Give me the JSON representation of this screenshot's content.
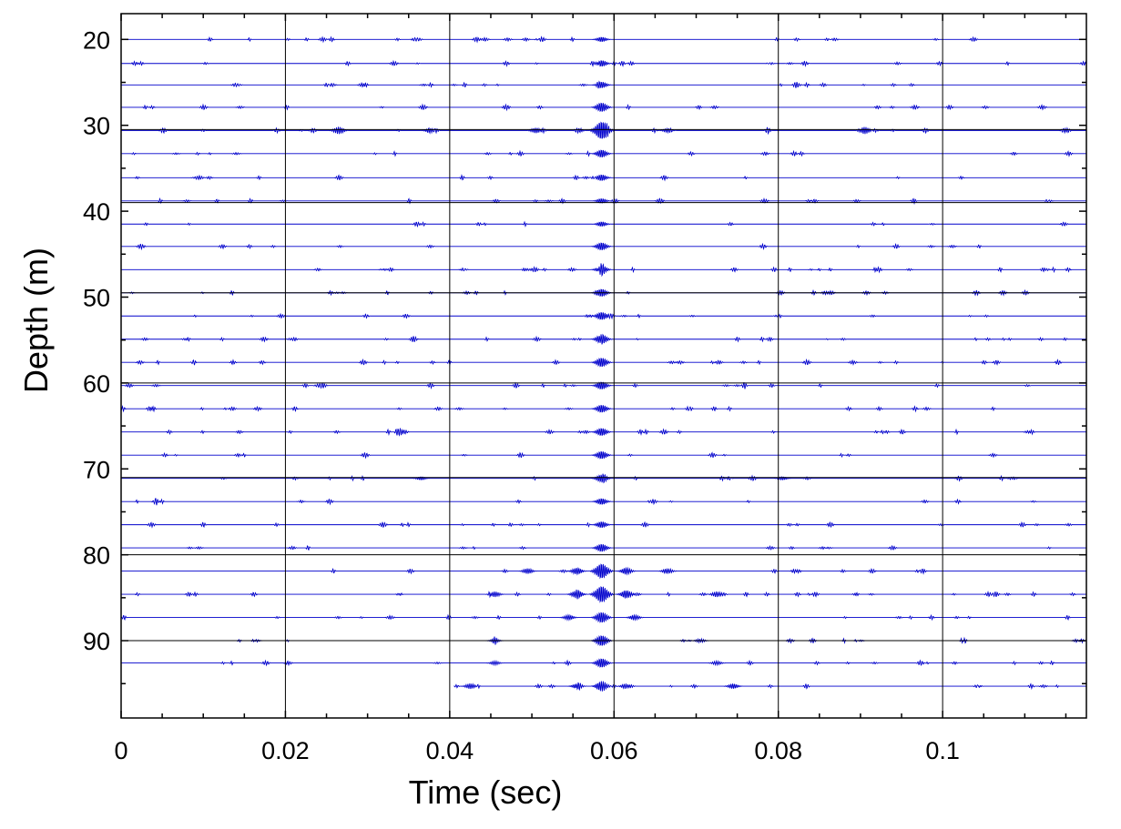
{
  "chart_data": {
    "type": "line",
    "title": "",
    "xlabel": "Time (sec)",
    "ylabel": "Depth (m)",
    "xlim": [
      0,
      0.1175
    ],
    "ylim": [
      99,
      17
    ],
    "y_reversed": true,
    "grid": false,
    "legend": "none",
    "trace_color": "#0000cc",
    "x_ticks": [
      0,
      0.02,
      0.04,
      0.06,
      0.08,
      0.1
    ],
    "x_tick_labels": [
      "0",
      "0.02",
      "0.04",
      "0.06",
      "0.08",
      "0.1"
    ],
    "y_ticks": [
      20,
      30,
      40,
      50,
      60,
      70,
      80,
      90
    ],
    "y_tick_labels": [
      "20",
      "30",
      "40",
      "50",
      "60",
      "70",
      "80",
      "90"
    ],
    "vertical_lines_x": [
      0.02,
      0.04,
      0.06,
      0.08,
      0.1
    ],
    "horizontal_lines_depth": [
      30.5,
      39,
      49.5,
      60,
      71,
      80,
      90
    ],
    "traces": [
      {
        "depth": 20.0,
        "x_start": 0.0,
        "x_end": 0.1175,
        "bursts": [
          [
            0.0585,
            3
          ]
        ]
      },
      {
        "depth": 22.8,
        "x_start": 0.0,
        "x_end": 0.1175,
        "bursts": [
          [
            0.0585,
            4
          ]
        ]
      },
      {
        "depth": 25.3,
        "x_start": 0.0,
        "x_end": 0.1175,
        "bursts": [
          [
            0.0585,
            4
          ]
        ]
      },
      {
        "depth": 27.9,
        "x_start": 0.0,
        "x_end": 0.1175,
        "bursts": [
          [
            0.0585,
            6
          ]
        ]
      },
      {
        "depth": 30.6,
        "x_start": 0.0,
        "x_end": 0.1175,
        "bursts": [
          [
            0.0585,
            12
          ],
          [
            0.0265,
            4
          ],
          [
            0.0505,
            3
          ],
          [
            0.0905,
            4
          ],
          [
            0.0665,
            2
          ],
          [
            0.0375,
            2
          ]
        ]
      },
      {
        "depth": 33.3,
        "x_start": 0.0,
        "x_end": 0.1175,
        "bursts": [
          [
            0.0585,
            5
          ]
        ]
      },
      {
        "depth": 36.1,
        "x_start": 0.0,
        "x_end": 0.1175,
        "bursts": [
          [
            0.0585,
            4
          ]
        ]
      },
      {
        "depth": 38.8,
        "x_start": 0.0,
        "x_end": 0.1175,
        "bursts": [
          [
            0.0585,
            3
          ]
        ]
      },
      {
        "depth": 41.5,
        "x_start": 0.0,
        "x_end": 0.1175,
        "bursts": [
          [
            0.0585,
            3
          ]
        ]
      },
      {
        "depth": 44.1,
        "x_start": 0.0,
        "x_end": 0.1175,
        "bursts": [
          [
            0.0585,
            5
          ]
        ]
      },
      {
        "depth": 46.8,
        "x_start": 0.0,
        "x_end": 0.1175,
        "bursts": [
          [
            0.0585,
            5
          ]
        ]
      },
      {
        "depth": 49.5,
        "x_start": 0.0,
        "x_end": 0.1175,
        "bursts": [
          [
            0.0585,
            5
          ]
        ]
      },
      {
        "depth": 52.2,
        "x_start": 0.0,
        "x_end": 0.1175,
        "bursts": [
          [
            0.0585,
            5
          ]
        ]
      },
      {
        "depth": 54.9,
        "x_start": 0.0,
        "x_end": 0.1175,
        "bursts": [
          [
            0.0585,
            6
          ]
        ]
      },
      {
        "depth": 57.6,
        "x_start": 0.0,
        "x_end": 0.1175,
        "bursts": [
          [
            0.0585,
            6
          ]
        ]
      },
      {
        "depth": 60.3,
        "x_start": 0.0,
        "x_end": 0.1175,
        "bursts": [
          [
            0.0585,
            5
          ]
        ]
      },
      {
        "depth": 63.0,
        "x_start": 0.0,
        "x_end": 0.1175,
        "bursts": [
          [
            0.0585,
            5
          ]
        ]
      },
      {
        "depth": 65.7,
        "x_start": 0.0,
        "x_end": 0.1175,
        "bursts": [
          [
            0.0585,
            5
          ]
        ]
      },
      {
        "depth": 68.4,
        "x_start": 0.0,
        "x_end": 0.1175,
        "bursts": [
          [
            0.0585,
            5
          ]
        ]
      },
      {
        "depth": 71.1,
        "x_start": 0.0,
        "x_end": 0.1175,
        "bursts": [
          [
            0.0585,
            5
          ],
          [
            0.0365,
            2
          ],
          [
            0.0805,
            2
          ]
        ]
      },
      {
        "depth": 73.8,
        "x_start": 0.0,
        "x_end": 0.1175,
        "bursts": [
          [
            0.0585,
            4
          ]
        ]
      },
      {
        "depth": 76.5,
        "x_start": 0.0,
        "x_end": 0.1175,
        "bursts": [
          [
            0.0585,
            4
          ]
        ]
      },
      {
        "depth": 79.2,
        "x_start": 0.0,
        "x_end": 0.1175,
        "bursts": [
          [
            0.0585,
            5
          ]
        ]
      },
      {
        "depth": 81.9,
        "x_start": 0.0,
        "x_end": 0.1175,
        "bursts": [
          [
            0.0585,
            10
          ],
          [
            0.0555,
            4
          ],
          [
            0.0615,
            4
          ],
          [
            0.0495,
            3
          ],
          [
            0.0665,
            3
          ]
        ]
      },
      {
        "depth": 84.6,
        "x_start": 0.0,
        "x_end": 0.1175,
        "bursts": [
          [
            0.0585,
            11
          ],
          [
            0.0555,
            5
          ],
          [
            0.0615,
            5
          ],
          [
            0.0455,
            3
          ],
          [
            0.0725,
            3
          ]
        ]
      },
      {
        "depth": 87.3,
        "x_start": 0.0,
        "x_end": 0.1175,
        "bursts": [
          [
            0.0585,
            7
          ],
          [
            0.0545,
            3
          ],
          [
            0.0625,
            3
          ]
        ]
      },
      {
        "depth": 90.0,
        "x_start": 0.0,
        "x_end": 0.1175,
        "bursts": [
          [
            0.0585,
            7
          ],
          [
            0.0455,
            2
          ],
          [
            0.0705,
            2
          ]
        ]
      },
      {
        "depth": 92.6,
        "x_start": 0.0,
        "x_end": 0.1175,
        "bursts": [
          [
            0.0585,
            6
          ],
          [
            0.0455,
            2
          ],
          [
            0.0725,
            2
          ]
        ]
      },
      {
        "depth": 95.3,
        "x_start": 0.0405,
        "x_end": 0.1175,
        "bursts": [
          [
            0.0585,
            6
          ],
          [
            0.0425,
            3
          ],
          [
            0.0555,
            3
          ],
          [
            0.0615,
            3
          ],
          [
            0.0745,
            3
          ]
        ]
      }
    ]
  }
}
